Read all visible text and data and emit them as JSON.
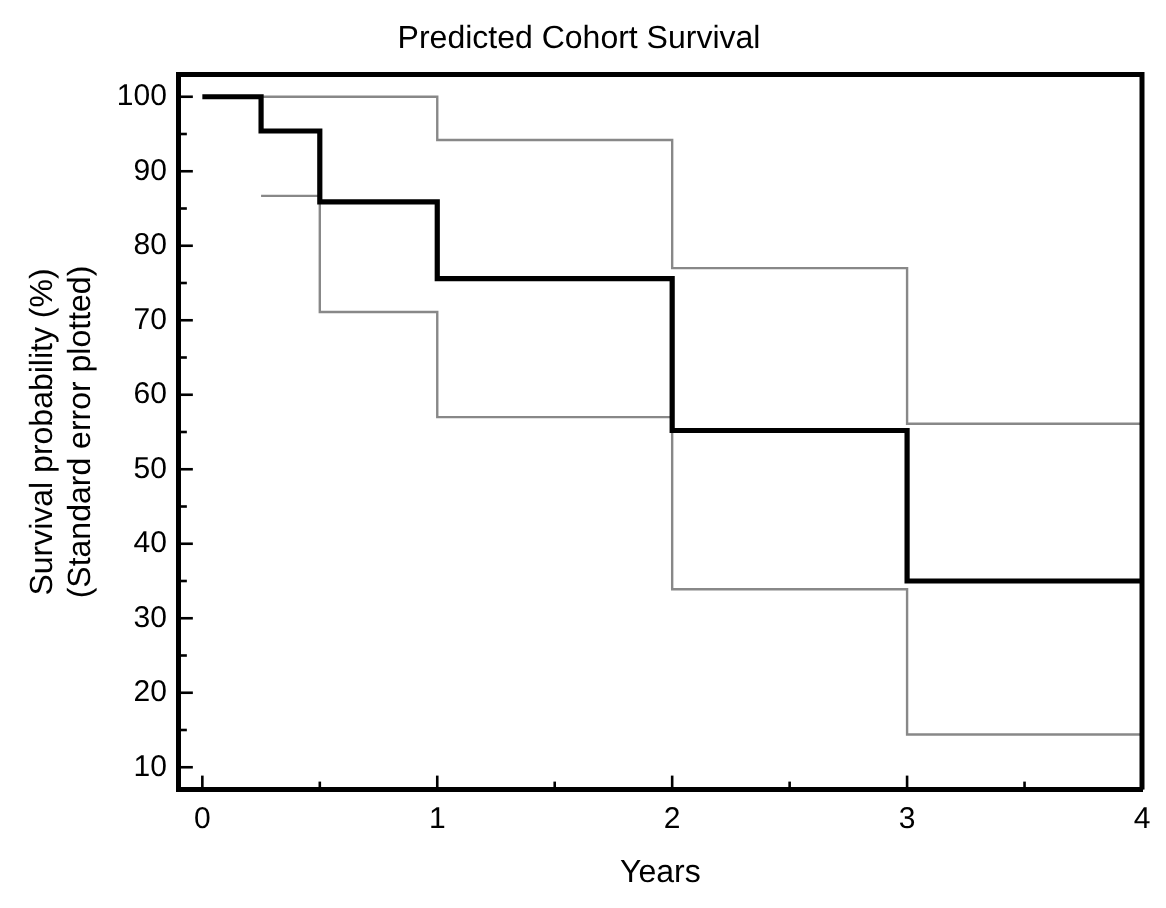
{
  "chart_data": {
    "type": "step",
    "title": "Predicted Cohort Survival",
    "xlabel": "Years",
    "ylabel": "Survival probability (%)\n(Standard error plotted)",
    "xlim": [
      -0.1,
      4
    ],
    "xticks": [
      0,
      {
        "value": 0.5,
        "label": null
      },
      1,
      {
        "value": 1.5,
        "label": null
      },
      2,
      {
        "value": 2.5,
        "label": null
      },
      3,
      {
        "value": 3.5,
        "label": null
      },
      4
    ],
    "ylim": [
      7,
      103
    ],
    "yticks": [
      10,
      {
        "value": 15,
        "label": null
      },
      20,
      {
        "value": 25,
        "label": null
      },
      30,
      {
        "value": 35,
        "label": null
      },
      40,
      {
        "value": 45,
        "label": null
      },
      50,
      {
        "value": 55,
        "label": null
      },
      60,
      {
        "value": 65,
        "label": null
      },
      70,
      {
        "value": 75,
        "label": null
      },
      80,
      {
        "value": 85,
        "label": null
      },
      90,
      {
        "value": 95,
        "label": null
      },
      100
    ],
    "grid": false,
    "legend": false,
    "series": [
      {
        "color": "#000000",
        "x": [
          0,
          0.25,
          0.5,
          1,
          2,
          3,
          4
        ],
        "values": [
          100,
          95.4,
          85.9,
          75.6,
          55.2,
          35.0,
          35.0
        ]
      },
      {
        "color": "#888888",
        "x": [
          0.25,
          1,
          2,
          3,
          4
        ],
        "values": [
          100,
          94.2,
          77.0,
          56.1,
          56.1
        ]
      },
      {
        "color": "#888888",
        "x": [
          0.25,
          0.5,
          1,
          2,
          3,
          4
        ],
        "values": [
          86.7,
          71.1,
          57.0,
          33.9,
          14.4,
          14.4
        ]
      }
    ]
  }
}
